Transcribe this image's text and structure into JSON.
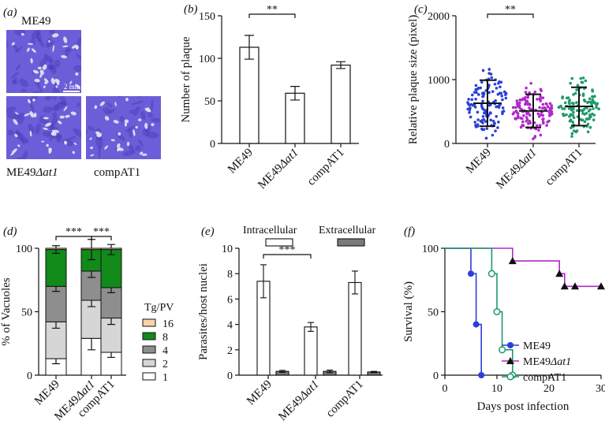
{
  "colors": {
    "plaque_bg": "#6b5ed8",
    "plaque_bg_dark": "#4a3fb8",
    "plaque_spot": "#e6e6f2",
    "me49": "#2a3fd8",
    "ko": "#b02ac8",
    "comp": "#1f9a6a",
    "green8": "#128a1a",
    "gray4": "#8e8e8e",
    "lightgray2": "#d6d6d6",
    "peach16": "#f7d3a8",
    "extra_fill": "#7a7a7a"
  },
  "panel_a": {
    "label": "(a)",
    "title_top": "ME49",
    "scale_bar": "2 mm",
    "label_ko_prefix": "ME49",
    "label_ko_suffix": "Δat1",
    "label_comp": "compAT1"
  },
  "chart_data": [
    {
      "panel": "(b)",
      "type": "bar",
      "categories": [
        "ME49",
        "ME49Δat1",
        "compAT1"
      ],
      "values": [
        113,
        59,
        92
      ],
      "errors": [
        14,
        8,
        4
      ],
      "ylabel": "Number of plaque",
      "ylim": [
        0,
        150
      ],
      "yticks": [
        0,
        50,
        100,
        150
      ],
      "significance": {
        "from": 0,
        "to": 1,
        "label": "**"
      }
    },
    {
      "panel": "(c)",
      "type": "scatter",
      "categories": [
        "ME49",
        "ME49Δat1",
        "compAT1"
      ],
      "means": [
        630,
        510,
        580
      ],
      "sd": [
        360,
        260,
        300
      ],
      "ylabel": "Relative plaque size (pixel)",
      "ylim": [
        0,
        2000
      ],
      "yticks": [
        0,
        1000,
        2000
      ],
      "significance": {
        "from": 0,
        "to": 1,
        "label": "**"
      }
    },
    {
      "panel": "(d)",
      "type": "bar",
      "stacked": true,
      "categories": [
        "ME49",
        "ME49Δat1",
        "compAT1"
      ],
      "series": [
        {
          "name": "1",
          "values": [
            13,
            29,
            18
          ],
          "errors": [
            4,
            9,
            4
          ]
        },
        {
          "name": "2",
          "values": [
            29,
            30,
            27
          ],
          "errors": [
            5,
            5,
            5
          ]
        },
        {
          "name": "4",
          "values": [
            28,
            23,
            24
          ],
          "errors": [
            4,
            5,
            4
          ]
        },
        {
          "name": "8",
          "values": [
            29,
            17,
            30
          ],
          "errors": [
            3,
            8,
            4
          ]
        },
        {
          "name": "16",
          "values": [
            1,
            1,
            1
          ],
          "errors": [
            0,
            0,
            0
          ]
        }
      ],
      "ylabel": "% of Vacuoles",
      "legend_title": "Tg/PV",
      "ylim": [
        0,
        100
      ],
      "yticks": [
        0,
        50,
        100
      ],
      "significance": [
        {
          "from": 0,
          "to": 1,
          "label": "***"
        },
        {
          "from": 1,
          "to": 2,
          "label": "***"
        }
      ]
    },
    {
      "panel": "(e)",
      "type": "bar",
      "categories": [
        "ME49",
        "ME49Δat1",
        "compAT1"
      ],
      "series": [
        {
          "name": "Intracellular",
          "values": [
            7.4,
            3.8,
            7.3
          ],
          "errors": [
            1.3,
            0.35,
            0.9
          ]
        },
        {
          "name": "Extracellular",
          "values": [
            0.3,
            0.3,
            0.25
          ],
          "errors": [
            0.08,
            0.1,
            0.05
          ]
        }
      ],
      "ylabel": "Parasites/host nuclei",
      "ylim": [
        0,
        10
      ],
      "yticks": [
        0,
        2,
        4,
        6,
        8,
        10
      ],
      "significance": {
        "from": 0,
        "to": 1,
        "label": "***"
      }
    },
    {
      "panel": "(f)",
      "type": "line",
      "series": [
        {
          "name": "ME49",
          "x": [
            0,
            5,
            5,
            6,
            6,
            7,
            7
          ],
          "y": [
            100,
            100,
            80,
            80,
            40,
            40,
            0
          ],
          "markers_x": [
            5,
            6,
            7
          ],
          "markers_y": [
            80,
            40,
            0
          ]
        },
        {
          "name": "ME49Δat1",
          "x": [
            0,
            13,
            13,
            22,
            22,
            23,
            23,
            30
          ],
          "y": [
            100,
            100,
            90,
            90,
            80,
            80,
            70,
            70
          ],
          "markers_x": [
            13,
            22,
            23,
            25,
            30
          ],
          "markers_y": [
            90,
            80,
            70,
            70,
            70
          ]
        },
        {
          "name": "compAT1",
          "x": [
            0,
            9,
            9,
            10,
            10,
            11,
            11,
            13,
            13
          ],
          "y": [
            100,
            100,
            80,
            80,
            50,
            50,
            20,
            20,
            0
          ],
          "markers_x": [
            9,
            10,
            11,
            13
          ],
          "markers_y": [
            80,
            50,
            20,
            0
          ]
        }
      ],
      "xlabel": "Days post infection",
      "ylabel": "Survival (%)",
      "xlim": [
        0,
        30
      ],
      "ylim": [
        0,
        100
      ],
      "xticks": [
        0,
        10,
        20,
        30
      ],
      "yticks": [
        0,
        50,
        100
      ],
      "legend": [
        "ME49",
        "ME49Δat1",
        "compAT1"
      ]
    }
  ]
}
